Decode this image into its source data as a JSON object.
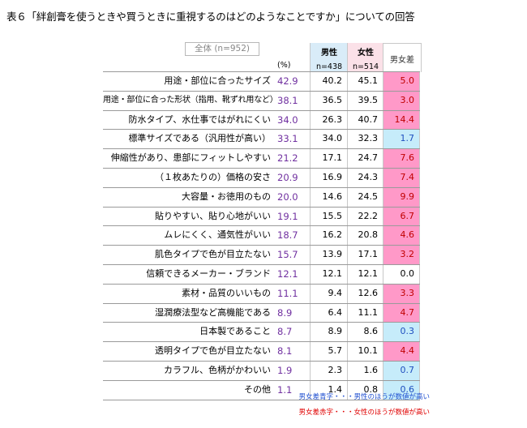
{
  "title": "表６「絆創膏を使うときや買うときに重視するのはどのようなことですか」についての回答",
  "header": {
    "total_label": "全体 (n=952)",
    "pct_label": "(%)",
    "male_label": "男性",
    "male_n": "n=438",
    "female_label": "女性",
    "female_n": "n=514",
    "diff_label": "男女差"
  },
  "rows": [
    {
      "label": "用途・部位に合ったサイズ",
      "total": "42.9",
      "male": "40.2",
      "female": "45.1",
      "diff": "5.0",
      "sign": "pos"
    },
    {
      "label": "用途・部位に合った形状（指用、靴ずれ用など）",
      "total": "38.1",
      "male": "36.5",
      "female": "39.5",
      "diff": "3.0",
      "sign": "pos"
    },
    {
      "label": "防水タイプ、水仕事ではがれにくい",
      "total": "34.0",
      "male": "26.3",
      "female": "40.7",
      "diff": "14.4",
      "sign": "pos"
    },
    {
      "label": "標準サイズである（汎用性が高い）",
      "total": "33.1",
      "male": "34.0",
      "female": "32.3",
      "diff": "1.7",
      "sign": "neg"
    },
    {
      "label": "伸縮性があり、患部にフィットしやすい",
      "total": "21.2",
      "male": "17.1",
      "female": "24.7",
      "diff": "7.6",
      "sign": "pos"
    },
    {
      "label": "（１枚あたりの）価格の安さ",
      "total": "20.9",
      "male": "16.9",
      "female": "24.3",
      "diff": "7.4",
      "sign": "pos"
    },
    {
      "label": "大容量・お徳用のもの",
      "total": "20.0",
      "male": "14.6",
      "female": "24.5",
      "diff": "9.9",
      "sign": "pos"
    },
    {
      "label": "貼りやすい、貼り心地がいい",
      "total": "19.1",
      "male": "15.5",
      "female": "22.2",
      "diff": "6.7",
      "sign": "pos"
    },
    {
      "label": "ムレにくく、通気性がいい",
      "total": "18.7",
      "male": "16.2",
      "female": "20.8",
      "diff": "4.6",
      "sign": "pos"
    },
    {
      "label": "肌色タイプで色が目立たない",
      "total": "15.7",
      "male": "13.9",
      "female": "17.1",
      "diff": "3.2",
      "sign": "pos"
    },
    {
      "label": "信頼できるメーカー・ブランド",
      "total": "12.1",
      "male": "12.1",
      "female": "12.1",
      "diff": "0.0",
      "sign": "zero"
    },
    {
      "label": "素材・品質のいいもの",
      "total": "11.1",
      "male": "9.4",
      "female": "12.6",
      "diff": "3.3",
      "sign": "pos"
    },
    {
      "label": "湿潤療法型など高機能である",
      "total": "8.9",
      "male": "6.4",
      "female": "11.1",
      "diff": "4.7",
      "sign": "pos"
    },
    {
      "label": "日本製であること",
      "total": "8.7",
      "male": "8.9",
      "female": "8.6",
      "diff": "0.3",
      "sign": "neg"
    },
    {
      "label": "透明タイプで色が目立たない",
      "total": "8.1",
      "male": "5.7",
      "female": "10.1",
      "diff": "4.4",
      "sign": "pos"
    },
    {
      "label": "カラフル、色柄がかわいい",
      "total": "1.9",
      "male": "2.3",
      "female": "1.6",
      "diff": "0.7",
      "sign": "neg"
    },
    {
      "label": "その他",
      "total": "1.1",
      "male": "1.4",
      "female": "0.8",
      "diff": "0.6",
      "sign": "neg"
    }
  ],
  "legend": {
    "blue": "男女差青字・・・男性のほうが数値が高い",
    "red": "男女差赤字・・・女性のほうが数値が高い"
  },
  "colors": {
    "total_text": "#7030a0",
    "male_header_bg": "#d9ecf8",
    "female_header_bg": "#fbe1e8",
    "diff_female_higher_bg": "#ff99c8",
    "diff_male_higher_bg": "#c6ecfa",
    "legend_blue": "#2050d0",
    "legend_red": "#e00000"
  }
}
